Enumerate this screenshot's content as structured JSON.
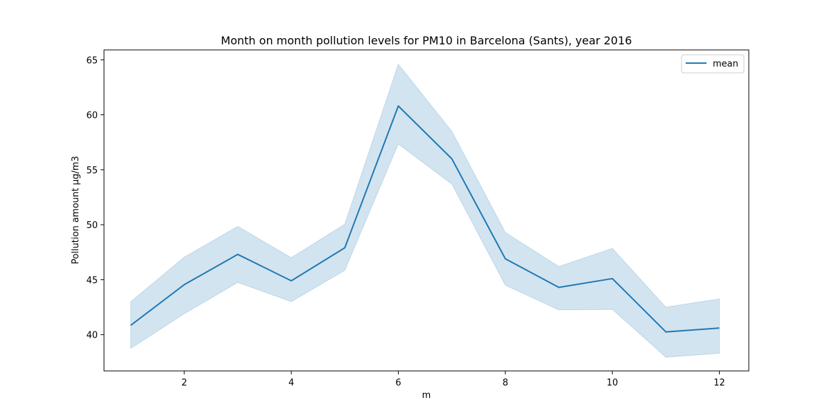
{
  "chart_data": {
    "type": "line",
    "title": "Month on month pollution levels for PM10 in Barcelona (Sants), year 2016",
    "xlabel": "m",
    "ylabel": "Pollution amount µg/m3",
    "xlim": [
      0.5,
      12.55
    ],
    "ylim": [
      36.7,
      65.9
    ],
    "xticks": [
      2,
      4,
      6,
      8,
      10,
      12
    ],
    "yticks": [
      40,
      45,
      50,
      55,
      60,
      65
    ],
    "grid": false,
    "legend_position": "top-right",
    "x": [
      1,
      2,
      3,
      4,
      5,
      6,
      7,
      8,
      9,
      10,
      11,
      12
    ],
    "series": [
      {
        "name": "mean",
        "color": "#1f77b4",
        "values": [
          40.85,
          44.55,
          47.3,
          44.9,
          47.9,
          60.8,
          56.0,
          46.9,
          44.3,
          45.1,
          40.25,
          40.6
        ],
        "band_upper": [
          43.0,
          47.05,
          49.85,
          47.0,
          50.05,
          64.6,
          58.5,
          49.3,
          46.2,
          47.85,
          42.5,
          43.25
        ],
        "band_lower": [
          38.75,
          41.9,
          44.75,
          43.0,
          45.85,
          57.35,
          53.7,
          44.5,
          42.25,
          42.3,
          37.95,
          38.3
        ]
      }
    ]
  }
}
